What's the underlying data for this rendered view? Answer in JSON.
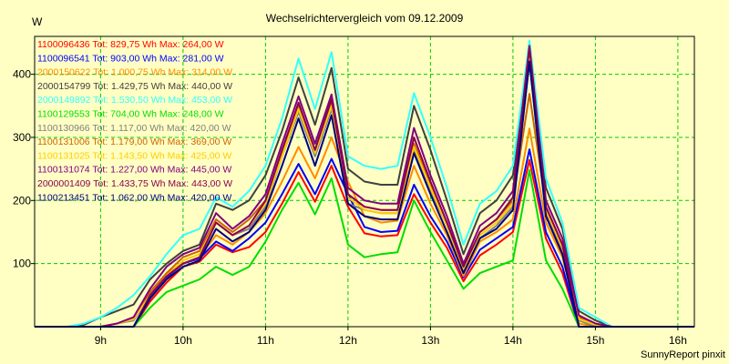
{
  "chart_data": {
    "type": "line",
    "title": "Wechselrichtervergleich vom 09.12.2009",
    "ylabel": "W",
    "xlabel": "",
    "footer": "SunnyReport pinxit",
    "grid": true,
    "legend_position": "top-left",
    "xlim": [
      8.2,
      16.2
    ],
    "ylim": [
      0,
      460
    ],
    "x_ticks": [
      {
        "value": 9,
        "label": "9h"
      },
      {
        "value": 10,
        "label": "10h"
      },
      {
        "value": 11,
        "label": "11h"
      },
      {
        "value": 12,
        "label": "12h"
      },
      {
        "value": 13,
        "label": "13h"
      },
      {
        "value": 14,
        "label": "14h"
      },
      {
        "value": 15,
        "label": "15h"
      },
      {
        "value": 16,
        "label": "16h"
      }
    ],
    "y_ticks": [
      {
        "value": 100,
        "label": "100"
      },
      {
        "value": 200,
        "label": "200"
      },
      {
        "value": 300,
        "label": "300"
      },
      {
        "value": 400,
        "label": "400"
      }
    ],
    "x": [
      8.2,
      8.4,
      8.6,
      8.8,
      9.0,
      9.2,
      9.4,
      9.6,
      9.8,
      10.0,
      10.2,
      10.4,
      10.6,
      10.8,
      11.0,
      11.2,
      11.4,
      11.6,
      11.8,
      12.0,
      12.2,
      12.4,
      12.6,
      12.8,
      13.0,
      13.2,
      13.4,
      13.6,
      13.8,
      14.0,
      14.2,
      14.4,
      14.6,
      14.8,
      15.0,
      15.2,
      15.4,
      15.6,
      15.8,
      16.0,
      16.2
    ],
    "series": [
      {
        "name": "1100096436 Tot: 829,75 Wh Max: 264,00 W",
        "color": "#ff0000",
        "values": [
          0,
          0,
          0,
          0,
          0,
          0,
          0,
          40,
          70,
          95,
          103,
          130,
          118,
          126,
          150,
          195,
          245,
          198,
          255,
          190,
          148,
          143,
          145,
          210,
          165,
          125,
          72,
          113,
          130,
          150,
          264,
          140,
          85,
          0,
          0,
          0,
          0,
          0,
          0,
          0,
          0
        ]
      },
      {
        "name": "1100096541 Tot: 903,00 Wh Max: 281,00 W",
        "color": "#0000ff",
        "values": [
          0,
          0,
          0,
          0,
          0,
          0,
          0,
          45,
          78,
          100,
          108,
          135,
          120,
          140,
          165,
          210,
          258,
          210,
          266,
          210,
          158,
          150,
          152,
          225,
          175,
          135,
          78,
          122,
          140,
          158,
          281,
          150,
          95,
          0,
          0,
          0,
          0,
          0,
          0,
          0,
          0
        ]
      },
      {
        "name": "2000150622 Tot: 1.000,75 Wh Max: 314,00 W",
        "color": "#ff8c00",
        "values": [
          0,
          0,
          0,
          0,
          0,
          5,
          12,
          55,
          85,
          100,
          110,
          145,
          130,
          150,
          180,
          230,
          285,
          235,
          300,
          230,
          175,
          165,
          168,
          255,
          195,
          145,
          80,
          135,
          150,
          170,
          314,
          165,
          110,
          5,
          0,
          0,
          0,
          0,
          0,
          0,
          0
        ]
      },
      {
        "name": "2000154799 Tot: 1.429,75 Wh Max: 440,00 W",
        "color": "#404040",
        "values": [
          0,
          0,
          0,
          3,
          15,
          25,
          35,
          75,
          100,
          120,
          130,
          195,
          185,
          200,
          240,
          310,
          395,
          320,
          410,
          250,
          230,
          225,
          225,
          350,
          280,
          200,
          115,
          180,
          200,
          240,
          440,
          220,
          155,
          25,
          10,
          0,
          0,
          0,
          0,
          0,
          0
        ]
      },
      {
        "name": "2000149892 Tot: 1.530,50 Wh Max: 453,00 W",
        "color": "#33ffff",
        "values": [
          0,
          0,
          0,
          5,
          15,
          30,
          50,
          80,
          115,
          145,
          155,
          205,
          190,
          215,
          255,
          330,
          425,
          345,
          435,
          270,
          255,
          250,
          255,
          370,
          300,
          220,
          130,
          195,
          215,
          255,
          453,
          235,
          165,
          30,
          15,
          0,
          0,
          0,
          0,
          0,
          0
        ]
      },
      {
        "name": "1100129553 Tot: 704,00 Wh Max: 248,00 W",
        "color": "#00dd00",
        "values": [
          0,
          0,
          0,
          0,
          0,
          0,
          0,
          30,
          55,
          65,
          75,
          95,
          82,
          95,
          135,
          185,
          228,
          178,
          235,
          130,
          110,
          115,
          118,
          200,
          150,
          105,
          60,
          85,
          95,
          105,
          248,
          105,
          60,
          0,
          0,
          0,
          0,
          0,
          0,
          0,
          0
        ]
      },
      {
        "name": "1100130966 Tot: 1.117,00 Wh Max: 420,00 W",
        "color": "#808080",
        "values": [
          0,
          0,
          0,
          0,
          0,
          5,
          10,
          50,
          80,
          100,
          110,
          165,
          145,
          155,
          190,
          270,
          340,
          270,
          345,
          195,
          185,
          180,
          180,
          280,
          215,
          160,
          90,
          140,
          160,
          190,
          420,
          180,
          120,
          10,
          0,
          0,
          0,
          0,
          0,
          0,
          0
        ]
      },
      {
        "name": "1100131006 Tot: 1.179,00 Wh Max: 369,00 W",
        "color": "#cc6600",
        "values": [
          0,
          0,
          0,
          0,
          0,
          5,
          15,
          55,
          85,
          110,
          120,
          170,
          150,
          170,
          200,
          275,
          350,
          280,
          355,
          210,
          190,
          185,
          185,
          290,
          225,
          165,
          95,
          150,
          170,
          200,
          369,
          190,
          130,
          15,
          5,
          0,
          0,
          0,
          0,
          0,
          0
        ]
      },
      {
        "name": "1100131025 Tot: 1.143,50 Wh Max: 425,00 W",
        "color": "#ffcc00",
        "values": [
          0,
          0,
          0,
          0,
          0,
          5,
          12,
          50,
          80,
          105,
          115,
          165,
          145,
          160,
          195,
          270,
          345,
          275,
          350,
          205,
          185,
          180,
          180,
          285,
          220,
          160,
          90,
          145,
          165,
          195,
          425,
          185,
          125,
          12,
          3,
          0,
          0,
          0,
          0,
          0,
          0
        ]
      },
      {
        "name": "1100131074 Tot: 1.227,00 Wh Max: 445,00 W",
        "color": "#800080",
        "values": [
          0,
          0,
          0,
          0,
          0,
          5,
          15,
          60,
          95,
          115,
          125,
          180,
          155,
          175,
          210,
          290,
          365,
          290,
          368,
          220,
          200,
          195,
          195,
          315,
          240,
          175,
          100,
          160,
          180,
          215,
          445,
          200,
          140,
          18,
          5,
          0,
          0,
          0,
          0,
          0,
          0
        ]
      },
      {
        "name": "2000001409 Tot: 1.433,75 Wh Max: 443,00 W",
        "color": "#8b0050",
        "values": [
          0,
          0,
          0,
          0,
          0,
          0,
          0,
          50,
          80,
          100,
          110,
          165,
          145,
          160,
          200,
          280,
          355,
          280,
          360,
          210,
          190,
          185,
          185,
          300,
          230,
          165,
          95,
          150,
          170,
          205,
          443,
          190,
          130,
          0,
          0,
          0,
          0,
          0,
          0,
          0,
          0
        ]
      },
      {
        "name": "1100213451 Tot: 1.062,00 Wh Max: 420,00 W",
        "color": "#000080",
        "values": [
          0,
          0,
          0,
          0,
          0,
          0,
          0,
          45,
          75,
          95,
          105,
          155,
          135,
          150,
          185,
          255,
          330,
          255,
          335,
          195,
          175,
          170,
          170,
          275,
          210,
          150,
          85,
          140,
          155,
          185,
          420,
          175,
          115,
          0,
          0,
          0,
          0,
          0,
          0,
          0,
          0
        ]
      }
    ]
  }
}
